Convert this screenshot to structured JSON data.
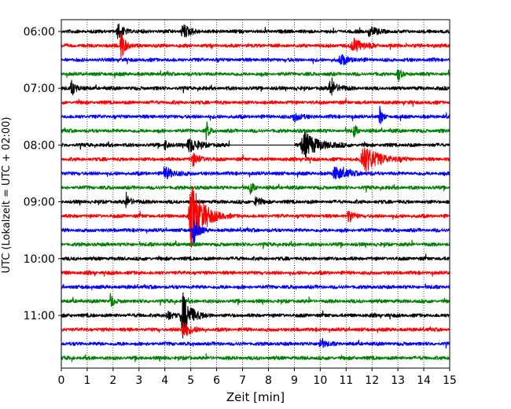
{
  "chart_data": {
    "type": "line",
    "subtype": "helicorder",
    "xlabel": "Zeit  [min]",
    "ylabel": "UTC (Lokalzeit = UTC + 02:00)",
    "x_ticks": [
      0,
      1,
      2,
      3,
      4,
      5,
      6,
      7,
      8,
      9,
      10,
      11,
      12,
      13,
      14,
      15
    ],
    "xlim": [
      0,
      15
    ],
    "y_ticks": [
      "06:00",
      "07:00",
      "08:00",
      "09:00",
      "10:00",
      "11:00"
    ],
    "grid": "vertical dotted at each minute",
    "line_minutes": 15,
    "start_time": "06:00",
    "trace_count": 24,
    "color_cycle": [
      "#000000",
      "#ff0000",
      "#0000ff",
      "#008000"
    ],
    "gap": {
      "trace_index": 8,
      "x_start": 6.5,
      "x_end": 9.0
    },
    "events": [
      {
        "trace_index": 0,
        "x": 2.2,
        "amplitude": 0.5,
        "duration": 0.25
      },
      {
        "trace_index": 0,
        "x": 4.7,
        "amplitude": 0.5,
        "duration": 0.3
      },
      {
        "trace_index": 0,
        "x": 11.9,
        "amplitude": 0.35,
        "duration": 0.3
      },
      {
        "trace_index": 1,
        "x": 2.3,
        "amplitude": 1.4,
        "duration": 0.15
      },
      {
        "trace_index": 1,
        "x": 11.3,
        "amplitude": 0.5,
        "duration": 0.4
      },
      {
        "trace_index": 2,
        "x": 10.8,
        "amplitude": 0.35,
        "duration": 0.35
      },
      {
        "trace_index": 3,
        "x": 13.0,
        "amplitude": 0.6,
        "duration": 0.1
      },
      {
        "trace_index": 4,
        "x": 0.4,
        "amplitude": 0.5,
        "duration": 0.2
      },
      {
        "trace_index": 4,
        "x": 10.4,
        "amplitude": 0.6,
        "duration": 0.3
      },
      {
        "trace_index": 6,
        "x": 9.0,
        "amplitude": 0.35,
        "duration": 0.25
      },
      {
        "trace_index": 6,
        "x": 12.3,
        "amplitude": 0.8,
        "duration": 0.1
      },
      {
        "trace_index": 7,
        "x": 5.6,
        "amplitude": 0.7,
        "duration": 0.1
      },
      {
        "trace_index": 7,
        "x": 11.3,
        "amplitude": 0.6,
        "duration": 0.1
      },
      {
        "trace_index": 8,
        "x": 4.0,
        "amplitude": 0.5,
        "duration": 0.1
      },
      {
        "trace_index": 8,
        "x": 4.95,
        "amplitude": 0.5,
        "duration": 0.4
      },
      {
        "trace_index": 8,
        "x": 9.4,
        "amplitude": 0.9,
        "duration": 0.6
      },
      {
        "trace_index": 9,
        "x": 5.1,
        "amplitude": 0.4,
        "duration": 0.3
      },
      {
        "trace_index": 9,
        "x": 11.7,
        "amplitude": 1.0,
        "duration": 0.6
      },
      {
        "trace_index": 10,
        "x": 4.0,
        "amplitude": 0.4,
        "duration": 0.4
      },
      {
        "trace_index": 10,
        "x": 10.6,
        "amplitude": 0.45,
        "duration": 0.5
      },
      {
        "trace_index": 11,
        "x": 7.3,
        "amplitude": 0.6,
        "duration": 0.1
      },
      {
        "trace_index": 12,
        "x": 2.5,
        "amplitude": 0.4,
        "duration": 0.25
      },
      {
        "trace_index": 12,
        "x": 7.5,
        "amplitude": 0.5,
        "duration": 0.15
      },
      {
        "trace_index": 13,
        "x": 5.05,
        "amplitude": 2.3,
        "duration": 0.5
      },
      {
        "trace_index": 13,
        "x": 11.1,
        "amplitude": 0.5,
        "duration": 0.2
      },
      {
        "trace_index": 14,
        "x": 5.1,
        "amplitude": 1.0,
        "duration": 0.2
      },
      {
        "trace_index": 19,
        "x": 1.9,
        "amplitude": 0.7,
        "duration": 0.1
      },
      {
        "trace_index": 20,
        "x": 4.7,
        "amplitude": 1.5,
        "duration": 0.35
      },
      {
        "trace_index": 20,
        "x": 4.1,
        "amplitude": 0.4,
        "duration": 0.2
      },
      {
        "trace_index": 21,
        "x": 4.7,
        "amplitude": 0.6,
        "duration": 0.3
      },
      {
        "trace_index": 22,
        "x": 10.0,
        "amplitude": 0.4,
        "duration": 0.2
      }
    ]
  }
}
